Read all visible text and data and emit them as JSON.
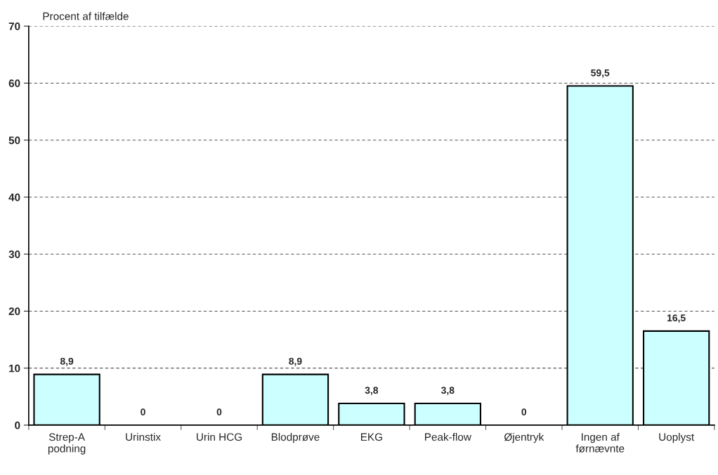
{
  "chart_data": {
    "type": "bar",
    "ylabel": "Procent af tilfælde",
    "categories": [
      "Strep-A\npodning",
      "Urinstix",
      "Urin HCG",
      "Blodprøve",
      "EKG",
      "Peak-flow",
      "Øjentryk",
      "Ingen af\nførnævnte",
      "Uoplyst"
    ],
    "values": [
      8.9,
      0,
      0,
      8.9,
      3.8,
      3.8,
      0,
      59.5,
      16.5
    ],
    "value_labels": [
      "8,9",
      "0",
      "0",
      "8,9",
      "3,8",
      "3,8",
      "0",
      "59,5",
      "16,5"
    ],
    "color": "#ccffff",
    "ylim": [
      0,
      70
    ],
    "yticks": [
      0,
      10,
      20,
      30,
      40,
      50,
      60,
      70
    ],
    "grid": "y",
    "legend": false
  }
}
